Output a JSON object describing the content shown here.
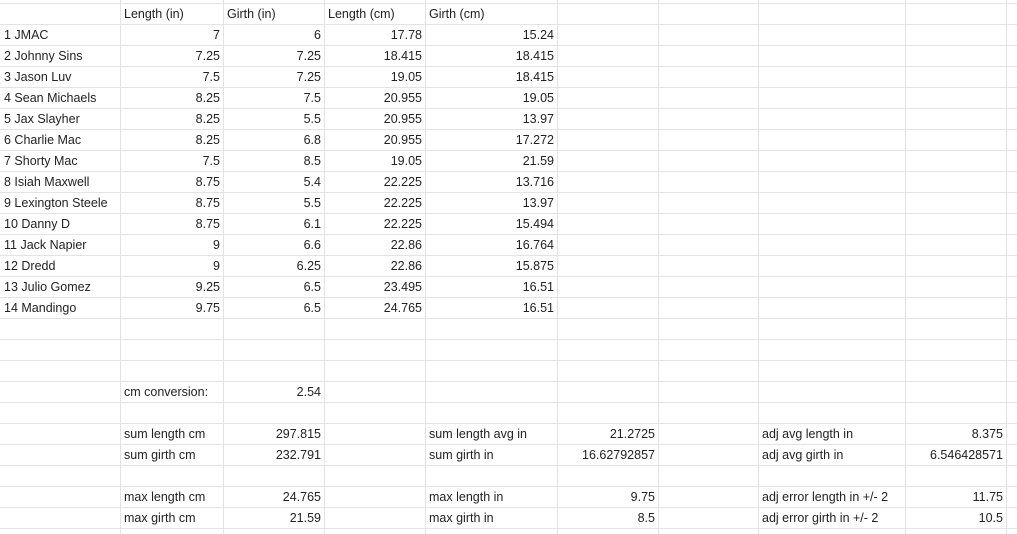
{
  "sheet": {
    "headers": {
      "length_in": "Length (in)",
      "girth_in": "Girth (in)",
      "length_cm": "Length (cm)",
      "girth_cm": "Girth (cm)"
    },
    "rows": [
      {
        "name": "1 JMAC",
        "length_in": "7",
        "girth_in": "6",
        "length_cm": "17.78",
        "girth_cm": "15.24"
      },
      {
        "name": "2 Johnny Sins",
        "length_in": "7.25",
        "girth_in": "7.25",
        "length_cm": "18.415",
        "girth_cm": "18.415"
      },
      {
        "name": "3 Jason Luv",
        "length_in": "7.5",
        "girth_in": "7.25",
        "length_cm": "19.05",
        "girth_cm": "18.415"
      },
      {
        "name": "4 Sean Michaels",
        "length_in": "8.25",
        "girth_in": "7.5",
        "length_cm": "20.955",
        "girth_cm": "19.05"
      },
      {
        "name": "5 Jax Slayher",
        "length_in": "8.25",
        "girth_in": "5.5",
        "length_cm": "20.955",
        "girth_cm": "13.97"
      },
      {
        "name": "6 Charlie Mac",
        "length_in": "8.25",
        "girth_in": "6.8",
        "length_cm": "20.955",
        "girth_cm": "17.272"
      },
      {
        "name": "7 Shorty Mac",
        "length_in": "7.5",
        "girth_in": "8.5",
        "length_cm": "19.05",
        "girth_cm": "21.59"
      },
      {
        "name": "8 Isiah Maxwell",
        "length_in": "8.75",
        "girth_in": "5.4",
        "length_cm": "22.225",
        "girth_cm": "13.716"
      },
      {
        "name": "9 Lexington Steele",
        "length_in": "8.75",
        "girth_in": "5.5",
        "length_cm": "22.225",
        "girth_cm": "13.97"
      },
      {
        "name": "10 Danny D",
        "length_in": "8.75",
        "girth_in": "6.1",
        "length_cm": "22.225",
        "girth_cm": "15.494"
      },
      {
        "name": "11 Jack Napier",
        "length_in": "9",
        "girth_in": "6.6",
        "length_cm": "22.86",
        "girth_cm": "16.764"
      },
      {
        "name": "12 Dredd",
        "length_in": "9",
        "girth_in": "6.25",
        "length_cm": "22.86",
        "girth_cm": "15.875"
      },
      {
        "name": "13 Julio Gomez",
        "length_in": "9.25",
        "girth_in": "6.5",
        "length_cm": "23.495",
        "girth_cm": "16.51"
      },
      {
        "name": "14 Mandingo",
        "length_in": "9.75",
        "girth_in": "6.5",
        "length_cm": "24.765",
        "girth_cm": "16.51"
      }
    ],
    "conversion": {
      "label": "cm conversion:",
      "value": "2.54"
    },
    "sums_cm": {
      "length_label": "sum length cm",
      "length_value": "297.815",
      "girth_label": "sum girth cm",
      "girth_value": "232.791"
    },
    "sums_in": {
      "length_label": "sum length avg in",
      "length_value": "21.2725",
      "girth_label": "sum girth in",
      "girth_value": "16.62792857"
    },
    "adj_avg": {
      "length_label": "adj avg length in",
      "length_value": "8.375",
      "girth_label": "adj avg girth in",
      "girth_value": "6.546428571"
    },
    "max_cm": {
      "length_label": "max length cm",
      "length_value": "24.765",
      "girth_label": "max girth cm",
      "girth_value": "21.59"
    },
    "max_in": {
      "length_label": "max length in",
      "length_value": "9.75",
      "girth_label": "max girth in",
      "girth_value": "8.5"
    },
    "adj_error": {
      "length_label": "adj error length in +/- 2",
      "length_value": "11.75",
      "girth_label": "adj error girth in +/- 2",
      "girth_value": "10.5"
    }
  }
}
